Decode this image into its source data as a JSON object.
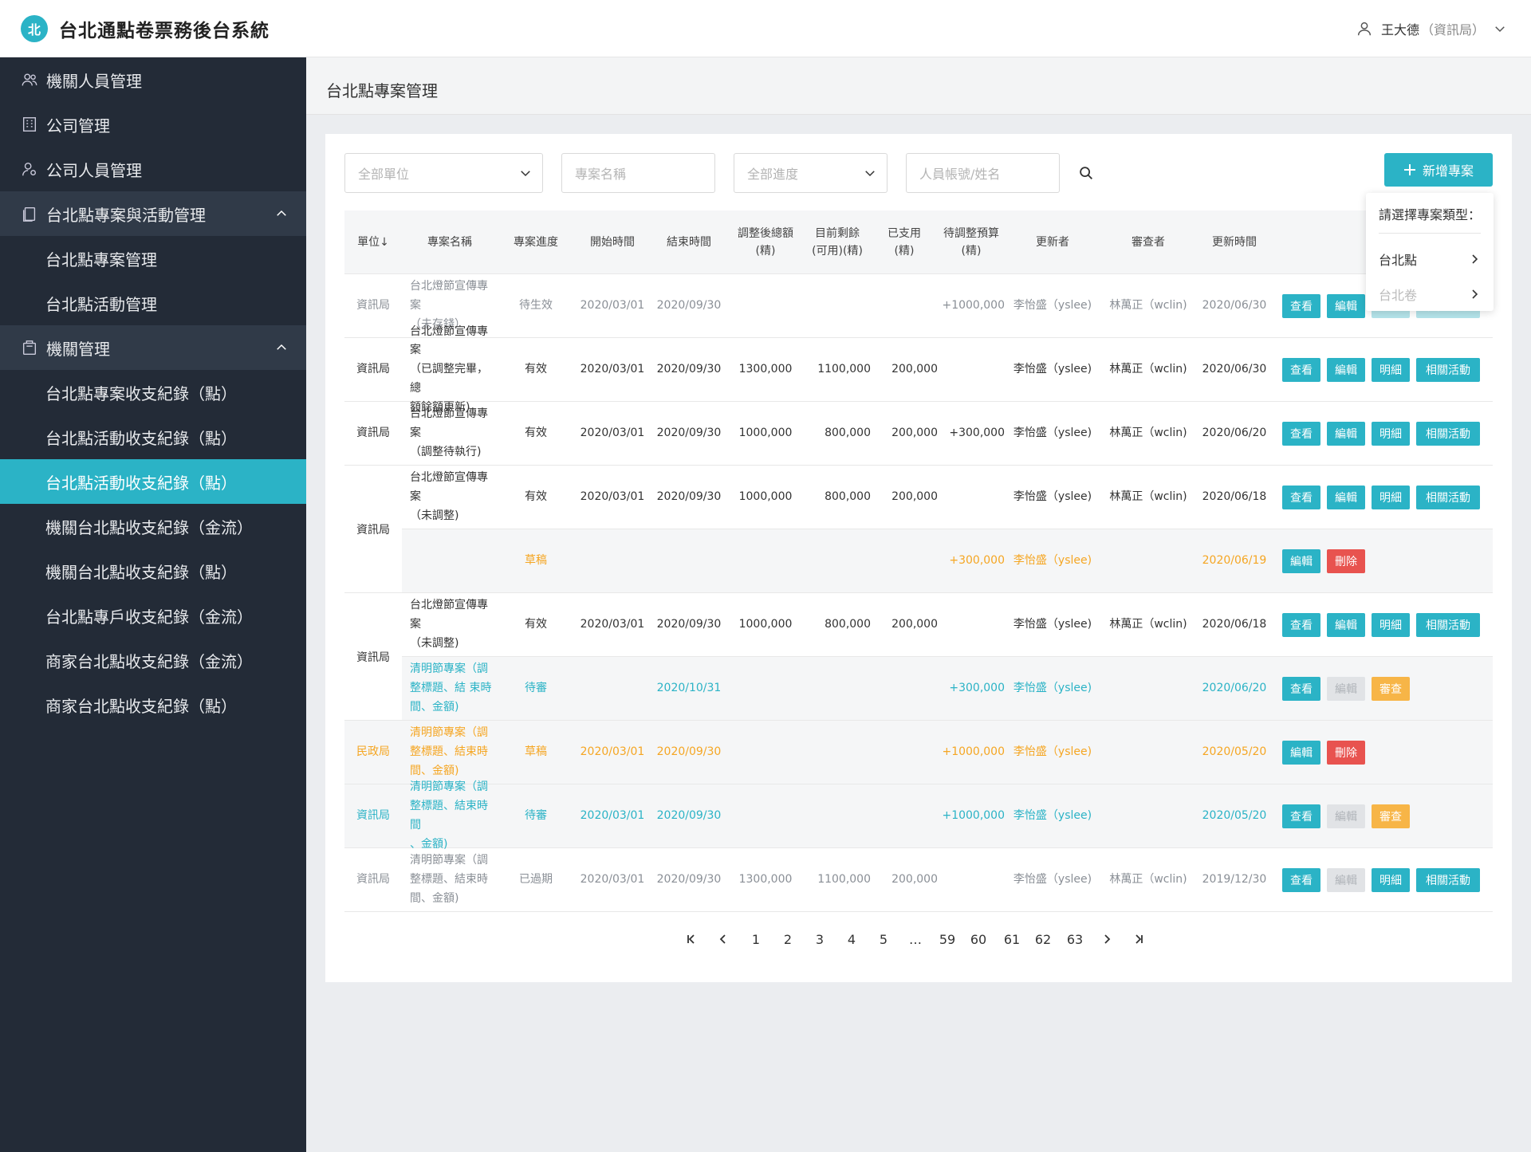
{
  "app": {
    "title": "台北通點卷票務後台系統",
    "logo_text": "北"
  },
  "user": {
    "name": "王大德",
    "dept": "（資訊局）"
  },
  "sidebar": {
    "items": [
      {
        "label": "機關人員管理",
        "type": "top"
      },
      {
        "label": "公司管理",
        "type": "top"
      },
      {
        "label": "公司人員管理",
        "type": "top"
      },
      {
        "label": "台北點專案與活動管理",
        "type": "group"
      },
      {
        "label": "台北點專案管理",
        "type": "sub"
      },
      {
        "label": "台北點活動管理",
        "type": "sub"
      },
      {
        "label": "機關管理",
        "type": "group"
      },
      {
        "label": "台北點專案收支紀錄（點）",
        "type": "sub"
      },
      {
        "label": "台北點活動收支紀錄（點）",
        "type": "sub"
      },
      {
        "label": "台北點活動收支紀錄（點）",
        "type": "sub",
        "active": true
      },
      {
        "label": "機關台北點收支紀錄（金流）",
        "type": "sub"
      },
      {
        "label": "機關台北點收支紀錄（點）",
        "type": "sub"
      },
      {
        "label": "台北點專戶收支紀錄（金流）",
        "type": "sub"
      },
      {
        "label": "商家台北點收支紀錄（金流）",
        "type": "sub"
      },
      {
        "label": "商家台北點收支紀錄（點）",
        "type": "sub"
      }
    ]
  },
  "page": {
    "title": "台北點專案管理"
  },
  "filters": {
    "unit_placeholder": "全部單位",
    "name_placeholder": "專案名稱",
    "progress_placeholder": "全部進度",
    "account_placeholder": "人員帳號/姓名"
  },
  "add_button": {
    "label": "新增專案"
  },
  "dropdown": {
    "title": "請選擇專案類型：",
    "items": [
      {
        "label": "台北點"
      },
      {
        "label": "台北卷"
      }
    ]
  },
  "table": {
    "headers": {
      "unit": "單位↓",
      "name": "專案名稱",
      "progress": "專案進度",
      "start": "開始時間",
      "end": "結束時間",
      "adjusted_1": "調整後總額",
      "adjusted_2": "(精)",
      "remaining_1": "目前剩餘",
      "remaining_2": "(可用)(精)",
      "used_1": "已支用",
      "used_2": "(精)",
      "pending_1": "待調整預算",
      "pending_2": "(精)",
      "updater": "更新者",
      "reviewer": "審查者",
      "updated": "更新時間"
    },
    "rows": [
      {
        "unit": "資訊局",
        "name1": "台北燈節宣傳專案",
        "name2": "（未存錢）",
        "name3": "",
        "progress": "待生效",
        "start": "2020/03/01",
        "end": "2020/09/30",
        "adjusted": "",
        "remaining": "",
        "used": "",
        "pending": "+1000,000",
        "updater": "李怡盛（yslee)",
        "reviewer": "林萬正（wclin)",
        "updated": "2020/06/30",
        "buttons": [
          "查看",
          "編輯",
          "明細",
          "相關活動"
        ]
      },
      {
        "unit": "資訊局",
        "name1": "台北燈節宣傳專案",
        "name2": "（已調整完畢，總",
        "name3": "額餘額更新)",
        "progress": "有效",
        "start": "2020/03/01",
        "end": "2020/09/30",
        "adjusted": "1300,000",
        "remaining": "1100,000",
        "used": "200,000",
        "pending": "",
        "updater": "李怡盛（yslee)",
        "reviewer": "林萬正（wclin)",
        "updated": "2020/06/30",
        "buttons": [
          "查看",
          "編輯",
          "明細",
          "相關活動"
        ]
      },
      {
        "unit": "資訊局",
        "name1": "台北燈節宣傳專案",
        "name2": "（調整待執行)",
        "name3": "",
        "progress": "有效",
        "start": "2020/03/01",
        "end": "2020/09/30",
        "adjusted": "1000,000",
        "remaining": "800,000",
        "used": "200,000",
        "pending": "+300,000",
        "updater": "李怡盛（yslee)",
        "reviewer": "林萬正（wclin)",
        "updated": "2020/06/20",
        "buttons": [
          "查看",
          "編輯",
          "明細",
          "相關活動"
        ]
      },
      {
        "unit": "資訊局",
        "name1": "台北燈節宣傳專案",
        "name2": "（未調整)",
        "name3": "",
        "progress": "有效",
        "start": "2020/03/01",
        "end": "2020/09/30",
        "adjusted": "1000,000",
        "remaining": "800,000",
        "used": "200,000",
        "pending": "",
        "updater": "李怡盛（yslee)",
        "reviewer": "林萬正（wclin)",
        "updated": "2020/06/18",
        "buttons": [
          "查看",
          "編輯",
          "明細",
          "相關活動"
        ]
      },
      {
        "unit": "",
        "name1": "",
        "name2": "",
        "name3": "",
        "progress": "草稿",
        "start": "",
        "end": "",
        "adjusted": "",
        "remaining": "",
        "used": "",
        "pending": "+300,000",
        "updater": "李怡盛（yslee)",
        "reviewer": "",
        "updated": "2020/06/19",
        "buttons": [
          "編輯",
          "刪除"
        ]
      },
      {
        "unit": "資訊局",
        "name1": "台北燈節宣傳專案",
        "name2": "（未調整)",
        "name3": "",
        "progress": "有效",
        "start": "2020/03/01",
        "end": "2020/09/30",
        "adjusted": "1000,000",
        "remaining": "800,000",
        "used": "200,000",
        "pending": "",
        "updater": "李怡盛（yslee)",
        "reviewer": "林萬正（wclin)",
        "updated": "2020/06/18",
        "buttons": [
          "查看",
          "編輯",
          "明細",
          "相關活動"
        ]
      },
      {
        "unit": "",
        "name1": "清明節專案（調",
        "name2": "整標題、結 束時",
        "name3": "間、金額)",
        "progress": "待審",
        "start": "",
        "end": "2020/10/31",
        "adjusted": "",
        "remaining": "",
        "used": "",
        "pending": "+300,000",
        "updater": "李怡盛（yslee)",
        "reviewer": "",
        "updated": "2020/06/20",
        "buttons": [
          "查看",
          "編輯",
          "審查"
        ]
      },
      {
        "unit": "民政局",
        "name1": "清明節專案（調",
        "name2": "整標題、結束時",
        "name3": "間、金額)",
        "progress": "草稿",
        "start": "2020/03/01",
        "end": "2020/09/30",
        "adjusted": "",
        "remaining": "",
        "used": "",
        "pending": "+1000,000",
        "updater": "李怡盛（yslee)",
        "reviewer": "",
        "updated": "2020/05/20",
        "buttons": [
          "編輯",
          "刪除"
        ]
      },
      {
        "unit": "資訊局",
        "name1": "清明節專案（調",
        "name2": "整標題、結束時間",
        "name3": "、金額)",
        "progress": "待審",
        "start": "2020/03/01",
        "end": "2020/09/30",
        "adjusted": "",
        "remaining": "",
        "used": "",
        "pending": "+1000,000",
        "updater": "李怡盛（yslee)",
        "reviewer": "",
        "updated": "2020/05/20",
        "buttons": [
          "查看",
          "編輯",
          "審查"
        ]
      },
      {
        "unit": "資訊局",
        "name1": "清明節專案（調",
        "name2": "整標題、結束時",
        "name3": "間、金額)",
        "progress": "已過期",
        "start": "2020/03/01",
        "end": "2020/09/30",
        "adjusted": "1300,000",
        "remaining": "1100,000",
        "used": "200,000",
        "pending": "",
        "updater": "李怡盛（yslee)",
        "reviewer": "林萬正（wclin)",
        "updated": "2019/12/30",
        "buttons": [
          "查看",
          "編輯",
          "明細",
          "相關活動"
        ]
      }
    ]
  },
  "pagination": {
    "pages": [
      "1",
      "2",
      "3",
      "4",
      "5",
      "…",
      "59",
      "60",
      "61",
      "62",
      "63"
    ]
  },
  "colors": {
    "accent": "#2bb3c6",
    "sidebar": "#232b37",
    "danger": "#e8534f",
    "warning": "#f7b547",
    "draft": "#f5a623"
  }
}
